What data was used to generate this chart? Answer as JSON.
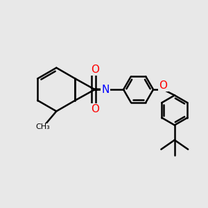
{
  "background_color": "#e8e8e8",
  "bond_color": "#000000",
  "nitrogen_color": "#0000ff",
  "oxygen_color": "#ff0000",
  "bond_width": 1.8,
  "figsize": [
    3.0,
    3.0
  ],
  "dpi": 100,
  "xlim": [
    0,
    10
  ],
  "ylim": [
    0,
    10
  ]
}
